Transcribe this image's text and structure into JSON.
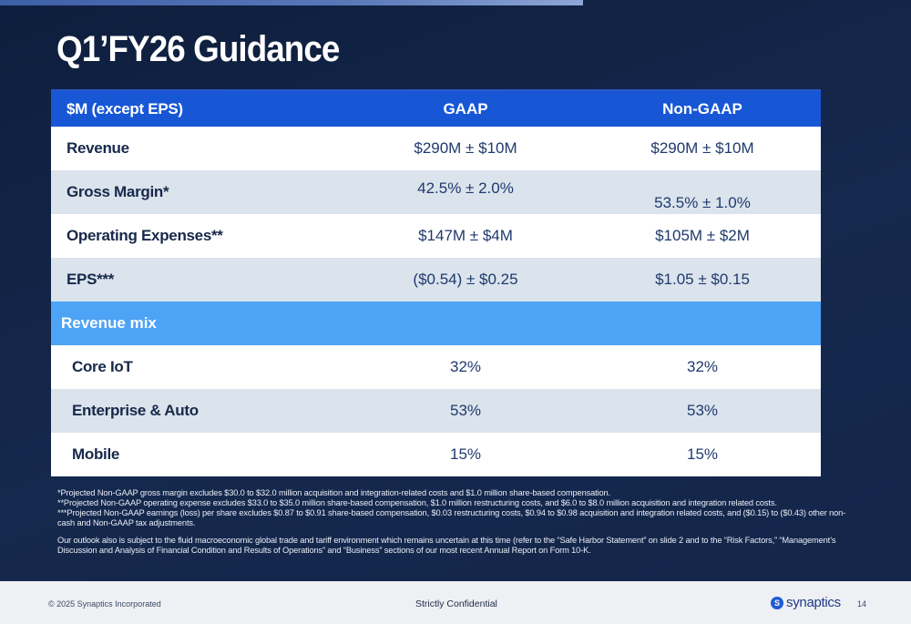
{
  "title": "Q1’FY26 Guidance",
  "table": {
    "header": {
      "label": "$M (except EPS)",
      "gaap": "GAAP",
      "non_gaap": "Non-GAAP"
    },
    "rows": [
      {
        "label": "Revenue",
        "gaap": "$290M ± $10M",
        "non_gaap": "$290M ± $10M"
      },
      {
        "label": "Gross Margin*",
        "gaap": "42.5% ± 2.0%",
        "non_gaap": "53.5% ± 1.0%"
      },
      {
        "label": "Operating Expenses**",
        "gaap": "$147M ± $4M",
        "non_gaap": "$105M ± $2M"
      },
      {
        "label": "EPS***",
        "gaap": "($0.54) ± $0.25",
        "non_gaap": "$1.05 ± $0.15"
      }
    ],
    "mix_label": "Revenue mix",
    "mix_rows": [
      {
        "label": "Core IoT",
        "gaap": "32%",
        "non_gaap": "32%"
      },
      {
        "label": "Enterprise & Auto",
        "gaap": "53%",
        "non_gaap": "53%"
      },
      {
        "label": "Mobile",
        "gaap": "15%",
        "non_gaap": "15%"
      }
    ]
  },
  "notes": [
    "*Projected Non-GAAP gross margin excludes $30.0 to $32.0 million acquisition and integration-related costs and $1.0 million share-based compensation.",
    "**Projected Non-GAAP operating expense excludes $33.0 to $35.0 million share-based compensation, $1.0 million restructuring costs, and $6.0 to $8.0 million acquisition and integration related costs.",
    "***Projected Non-GAAP earnings (loss) per share excludes $0.87 to $0.91 share-based compensation, $0.03 restructuring costs, $0.94 to $0.98 acquisition and integration related costs, and ($0.15) to ($0.43) other non-cash and Non-GAAP tax adjustments."
  ],
  "outlook_note": "Our outlook also is subject to the fluid macroeconomic global trade and tariff environment which remains uncertain at this time (refer to the “Safe Harbor Statement” on slide 2 and to the “Risk Factors,” “Management’s Discussion and Analysis of Financial Condition and Results of Operations” and “Business” sections of our most recent Annual Report on Form 10-K.",
  "footer": {
    "copyright": "© 2025 Synaptics Incorporated",
    "confidential": "Strictly Confidential",
    "logo_text": "synaptics",
    "logo_mark": "S",
    "page_number": "14"
  },
  "colors": {
    "background": "#14264a",
    "header_row": "#1757d6",
    "mix_row": "#4da3f5",
    "alt_row": "#dbe3ec"
  }
}
